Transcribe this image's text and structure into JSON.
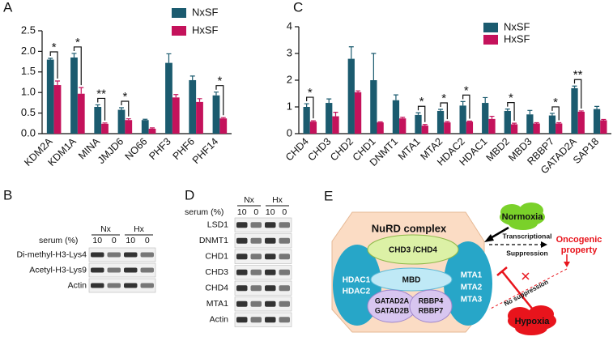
{
  "chart_data": [
    {
      "type": "bar",
      "panel_label": "A",
      "categories": [
        "KDM2A",
        "KDM1A",
        "MINA",
        "JMJD6",
        "NO66",
        "PHF3",
        "PHF6",
        "PHF14"
      ],
      "series": [
        {
          "name": "NxSF",
          "color": "#1b5b6f",
          "values": [
            1.8,
            1.85,
            0.65,
            0.58,
            0.33,
            1.72,
            1.3,
            0.93
          ],
          "errors": [
            0.03,
            0.1,
            0.05,
            0.05,
            0.02,
            0.22,
            0.1,
            0.08
          ]
        },
        {
          "name": "HxSF",
          "color": "#c4125b",
          "values": [
            1.18,
            0.97,
            0.24,
            0.33,
            0.12,
            0.88,
            0.77,
            0.37
          ],
          "errors": [
            0.1,
            0.15,
            0.02,
            0.03,
            0.02,
            0.07,
            0.08,
            0.02
          ]
        }
      ],
      "ylim": [
        0,
        2.5
      ],
      "yticks": [
        {
          "value": 0,
          "label": "0.0"
        },
        0.5,
        {
          "value": 1,
          "label": "1.0"
        },
        1.5,
        {
          "value": 2,
          "label": "2.0"
        },
        2.5
      ],
      "significance": [
        "*",
        "*",
        "**",
        "*",
        null,
        null,
        null,
        "*"
      ]
    },
    {
      "type": "bar",
      "panel_label": "C",
      "categories": [
        "CHD4",
        "CHD3",
        "CHD2",
        "CHD1",
        "DNMT1",
        "MTA1",
        "MTA2",
        "HDAC2",
        "HDAC1",
        "MBD2",
        "MBD3",
        "RBBP7",
        "GATAD2A",
        "SAP18"
      ],
      "series": [
        {
          "name": "NxSF",
          "color": "#1b5b6f",
          "values": [
            1.0,
            1.15,
            2.8,
            2.0,
            1.25,
            0.7,
            0.85,
            1.05,
            1.15,
            0.85,
            0.72,
            0.68,
            1.7,
            0.92
          ],
          "errors": [
            0.12,
            0.15,
            0.45,
            1.0,
            0.2,
            0.08,
            0.06,
            0.15,
            0.2,
            0.07,
            0.15,
            0.08,
            0.08,
            0.1
          ]
        },
        {
          "name": "HxSF",
          "color": "#c4125b",
          "values": [
            0.45,
            0.65,
            1.55,
            0.42,
            0.57,
            0.3,
            0.42,
            0.45,
            0.55,
            0.35,
            0.38,
            0.38,
            0.82,
            0.5
          ],
          "errors": [
            0.03,
            0.15,
            0.05,
            0.02,
            0.04,
            0.04,
            0.03,
            0.02,
            0.1,
            0.04,
            0.03,
            0.03,
            0.03,
            0.03
          ]
        }
      ],
      "ylim": [
        0,
        4
      ],
      "yticks": [
        0,
        1,
        2,
        3,
        4
      ],
      "significance": [
        "*",
        null,
        null,
        null,
        null,
        "*",
        "*",
        "*",
        null,
        "*",
        null,
        "*",
        "**",
        null
      ]
    }
  ],
  "blots": [
    {
      "panel_label": "B",
      "conditions": [
        "Nx",
        "Hx"
      ],
      "serum_label": "serum (%)",
      "lanes": [
        10,
        0,
        10,
        0
      ],
      "rows": [
        "Di-methyl-H3-Lys4",
        "Acetyl-H3-Lys9",
        "Actin"
      ]
    },
    {
      "panel_label": "D",
      "conditions": [
        "Nx",
        "Hx"
      ],
      "serum_label": "serum (%)",
      "lanes": [
        10,
        0,
        10,
        0
      ],
      "rows": [
        "LSD1",
        "DNMT1",
        "CHD1",
        "CHD3",
        "CHD4",
        "MTA1",
        "Actin"
      ]
    }
  ],
  "diagram": {
    "panel_label": "E",
    "title": "NuRD complex",
    "nodes": {
      "chd": "CHD3 /CHD4",
      "mbd": "MBD",
      "hdac1": "HDAC1",
      "hdac2": "HDAC2",
      "mta1": "MTA1",
      "mta2": "MTA2",
      "mta3": "MTA3",
      "gatad2a": "GATAD2A",
      "gatad2b": "GATAD2B",
      "rbbp4": "RBBP4",
      "rbbp7": "RBBP7",
      "normoxia": "Normoxia",
      "hypoxia": "Hypoxia"
    },
    "edges": {
      "transcriptional": "Transcriptional",
      "suppression": "Suppression",
      "no_suppression": "No suppression"
    },
    "outcome": [
      "Oncogenic",
      "property"
    ]
  }
}
